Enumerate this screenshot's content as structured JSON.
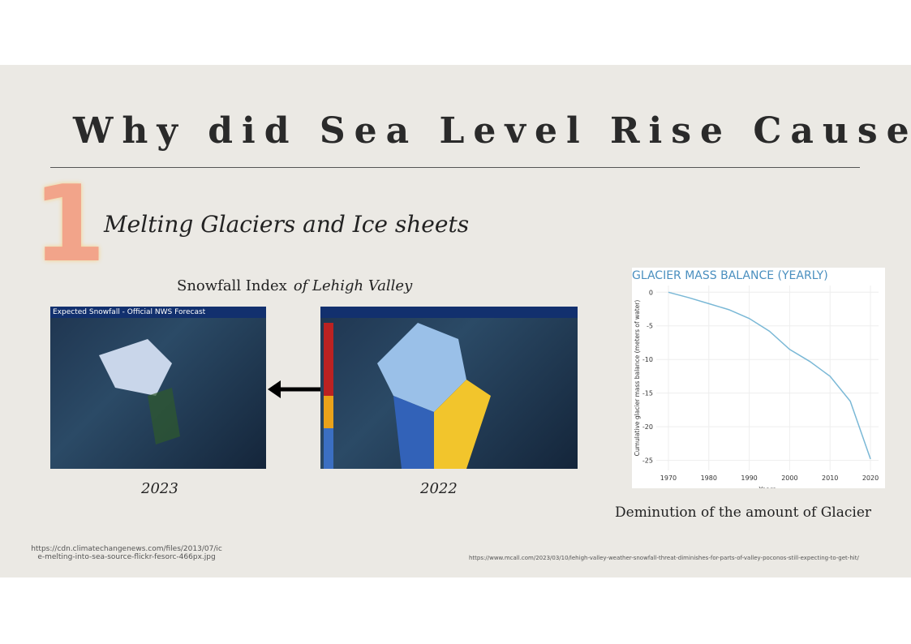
{
  "slide": {
    "title": "Why did Sea Level Rise Caused",
    "number": "1",
    "subtitle": "Melting Glaciers and Ice sheets",
    "snowfall_label": "Snowfall Index",
    "snowfall_label_italic": "of Lehigh Valley",
    "map_2023_header": "Expected Snowfall - Official NWS Forecast",
    "year_left": "2023",
    "year_right": "2022",
    "caption": "Deminution of the amount of Glacier",
    "url_left": "https://cdn.climatechangenews.com/files/2013/07/ice-melting-into-sea-source-flickr-fesorc-466px.jpg",
    "url_right": "https://www.mcall.com/2023/03/10/lehigh-valley-weather-snowfall-threat-diminishes-for-parts-of-valley-poconos-still-expecting-to-get-hit/"
  },
  "chart": {
    "type": "line",
    "title": "GLACIER MASS BALANCE (YEARLY)",
    "x_label": "Years",
    "y_label": "Cumulative glacier mass balance (meters of water)",
    "x": [
      1970,
      1975,
      1980,
      1985,
      1990,
      1995,
      2000,
      2005,
      2010,
      2015,
      2020
    ],
    "values": [
      0,
      -0.8,
      -1.7,
      -2.6,
      -3.9,
      -5.8,
      -8.5,
      -10.3,
      -12.5,
      -16.2,
      -24.8
    ],
    "color": "#7ab8d6",
    "xlim": [
      1967,
      2022
    ],
    "ylim": [
      -26.5,
      1
    ],
    "xticks": [
      1970,
      1980,
      1990,
      2000,
      2010,
      2020
    ],
    "yticks": [
      0,
      -5,
      -10,
      -15,
      -20,
      -25
    ],
    "grid": true
  }
}
